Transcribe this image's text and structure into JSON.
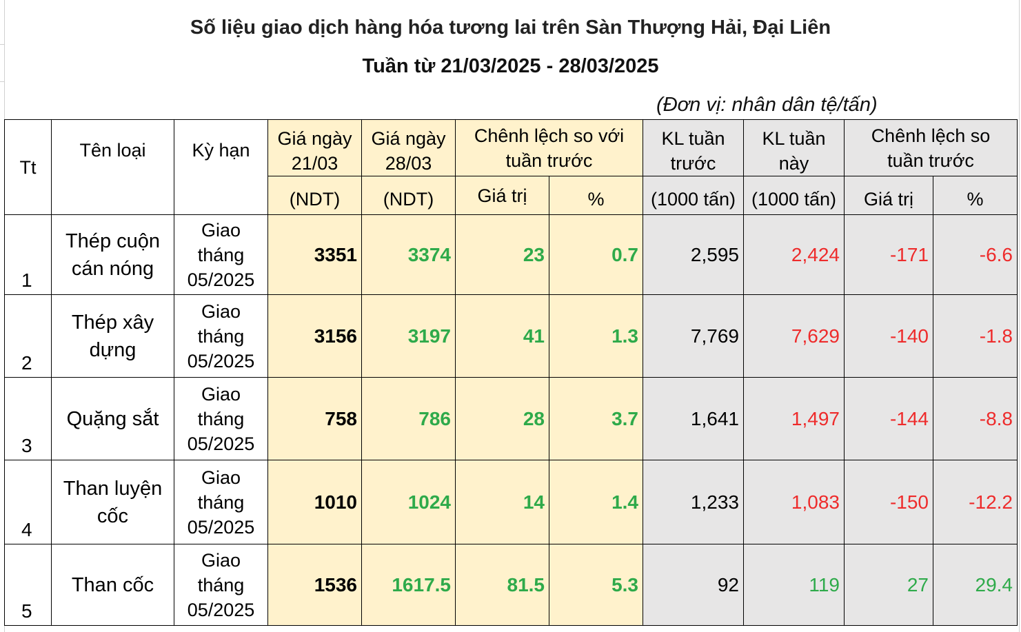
{
  "title": "Số liệu giao dịch hàng hóa tương lai trên Sàn Thượng Hải, Đại Liên",
  "subtitle": "Tuần từ 21/03/2025 - 28/03/2025",
  "unit": "(Đơn vị: nhân dân tệ/tấn)",
  "headers": {
    "tt": "Tt",
    "ten_loai": "Tên loại",
    "ky_han": "Kỳ hạn",
    "gia_2103_l1": "Giá ngày",
    "gia_2103_l2": "21/03",
    "gia_2103_unit": "(NDT)",
    "gia_2803_l1": "Giá ngày",
    "gia_2803_l2": "28/03",
    "gia_2803_unit": "(NDT)",
    "chenh_lech_gia_l1": "Chênh lệch so với",
    "chenh_lech_gia_l2": "tuần trước",
    "kl_truoc_l1": "KL tuần",
    "kl_truoc_l2": "trước",
    "kl_truoc_unit": "(1000 tấn)",
    "kl_nay_l1": "KL tuần",
    "kl_nay_l2": "này",
    "kl_nay_unit": "(1000 tấn)",
    "chenh_lech_kl_l1": "Chênh lệch so",
    "chenh_lech_kl_l2": "tuần trước",
    "gia_tri": "Giá trị",
    "phan_tram": "%",
    "gia_tri_2": "Giá trị",
    "phan_tram_2": "%"
  },
  "rows": [
    {
      "tt": "1",
      "name_l1": "Thép cuộn",
      "name_l2": "cán nóng",
      "term_l1": "Giao",
      "term_l2": "tháng",
      "term_l3": "05/2025",
      "price_prev": "3351",
      "price_now": "3374",
      "diff": "23",
      "diff_pct": "0.7",
      "vol_prev": "2,595",
      "vol_now": "2,424",
      "vol_diff": "-171",
      "vol_pct": "-6.6",
      "vol_color": "red"
    },
    {
      "tt": "2",
      "name_l1": "Thép xây",
      "name_l2": "dựng",
      "term_l1": "Giao",
      "term_l2": "tháng",
      "term_l3": "05/2025",
      "price_prev": "3156",
      "price_now": "3197",
      "diff": "41",
      "diff_pct": "1.3",
      "vol_prev": "7,769",
      "vol_now": "7,629",
      "vol_diff": "-140",
      "vol_pct": "-1.8",
      "vol_color": "red"
    },
    {
      "tt": "3",
      "name_l1": "Quặng sắt",
      "name_l2": "",
      "term_l1": "Giao",
      "term_l2": "tháng",
      "term_l3": "05/2025",
      "price_prev": "758",
      "price_now": "786",
      "diff": "28",
      "diff_pct": "3.7",
      "vol_prev": "1,641",
      "vol_now": "1,497",
      "vol_diff": "-144",
      "vol_pct": "-8.8",
      "vol_color": "red"
    },
    {
      "tt": "4",
      "name_l1": "Than luyện",
      "name_l2": "cốc",
      "term_l1": "Giao",
      "term_l2": "tháng",
      "term_l3": "05/2025",
      "price_prev": "1010",
      "price_now": "1024",
      "diff": "14",
      "diff_pct": "1.4",
      "vol_prev": "1,233",
      "vol_now": "1,083",
      "vol_diff": "-150",
      "vol_pct": "-12.2",
      "vol_color": "red"
    },
    {
      "tt": "5",
      "name_l1": "Than cốc",
      "name_l2": "",
      "term_l1": "Giao",
      "term_l2": "tháng",
      "term_l3": "05/2025",
      "price_prev": "1536",
      "price_now": "1617.5",
      "diff": "81.5",
      "diff_pct": "5.3",
      "vol_prev": "92",
      "vol_now": "119",
      "vol_diff": "27",
      "vol_pct": "29.4",
      "vol_color": "green"
    }
  ],
  "colors": {
    "price_bg": "#fff2cc",
    "volume_bg": "#e7e6e6",
    "positive": "#2eaa4a",
    "negative": "#ee2b2b"
  }
}
